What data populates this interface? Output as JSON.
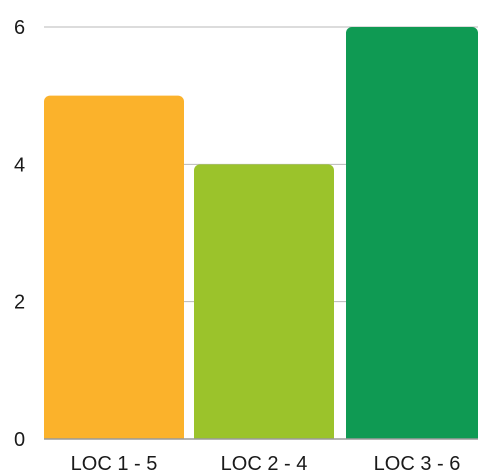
{
  "chart_data": {
    "type": "bar",
    "title": "",
    "xlabel": "",
    "ylabel": "",
    "categories": [
      "LOC 1 - 5",
      "LOC 2 - 4",
      "LOC 3 - 6"
    ],
    "values": [
      5,
      4,
      6
    ],
    "bar_colors": [
      "#fbb22b",
      "#9bc32b",
      "#0f9a53"
    ],
    "ylim": [
      0,
      6
    ],
    "yticks": [
      "0",
      "2",
      "4",
      "6"
    ],
    "grid": true,
    "legend": "none"
  }
}
